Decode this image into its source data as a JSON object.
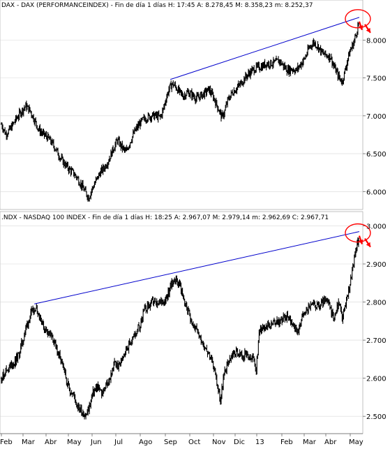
{
  "chart_data": [
    {
      "type": "ohlc",
      "title": "DAX - DAX (PERFORMANCEINDEX) - Fin de día 1 días H: 17:45  A: 8.278,45  M: 8.358,23  m: 8.252,37",
      "yticks": [
        "6.000",
        "6.500",
        "7.000",
        "7.500",
        "8.000"
      ],
      "ylim": [
        5800,
        8400
      ],
      "grid": true,
      "trendline": {
        "from": [
          "2012-09-03",
          7480
        ],
        "to": [
          "2013-05-08",
          8300
        ]
      },
      "annotation": "circle + arrows at latest high",
      "series": [
        {
          "close": [
            [
              0,
              6890
            ],
            [
              6,
              6760
            ],
            [
              12,
              6820
            ],
            [
              20,
              6950
            ],
            [
              28,
              7060
            ],
            [
              34,
              7130
            ],
            [
              40,
              7070
            ],
            [
              46,
              6950
            ],
            [
              52,
              6820
            ],
            [
              58,
              6760
            ],
            [
              64,
              6720
            ],
            [
              70,
              6650
            ],
            [
              76,
              6560
            ],
            [
              82,
              6450
            ],
            [
              88,
              6370
            ],
            [
              94,
              6300
            ],
            [
              100,
              6250
            ],
            [
              106,
              6180
            ],
            [
              112,
              6080
            ],
            [
              118,
              5980
            ],
            [
              122,
              5920
            ],
            [
              126,
              6020
            ],
            [
              132,
              6140
            ],
            [
              138,
              6250
            ],
            [
              144,
              6320
            ],
            [
              150,
              6420
            ],
            [
              156,
              6560
            ],
            [
              162,
              6680
            ],
            [
              168,
              6590
            ],
            [
              174,
              6520
            ],
            [
              180,
              6660
            ],
            [
              186,
              6790
            ],
            [
              192,
              6880
            ],
            [
              198,
              6950
            ],
            [
              204,
              6980
            ],
            [
              210,
              7000
            ],
            [
              216,
              7000
            ],
            [
              222,
              6980
            ],
            [
              226,
              7080
            ],
            [
              230,
              7230
            ],
            [
              234,
              7350
            ],
            [
              238,
              7420
            ],
            [
              242,
              7400
            ],
            [
              248,
              7320
            ],
            [
              254,
              7260
            ],
            [
              260,
              7310
            ],
            [
              266,
              7280
            ],
            [
              272,
              7230
            ],
            [
              278,
              7260
            ],
            [
              284,
              7300
            ],
            [
              290,
              7350
            ],
            [
              296,
              7250
            ],
            [
              302,
              7120
            ],
            [
              308,
              6980
            ],
            [
              312,
              7060
            ],
            [
              316,
              7200
            ],
            [
              322,
              7300
            ],
            [
              328,
              7360
            ],
            [
              334,
              7420
            ],
            [
              340,
              7500
            ],
            [
              346,
              7560
            ],
            [
              352,
              7610
            ],
            [
              358,
              7640
            ],
            [
              364,
              7650
            ],
            [
              370,
              7690
            ],
            [
              376,
              7690
            ],
            [
              382,
              7700
            ],
            [
              388,
              7730
            ],
            [
              394,
              7660
            ],
            [
              400,
              7600
            ],
            [
              406,
              7620
            ],
            [
              412,
              7600
            ],
            [
              418,
              7680
            ],
            [
              424,
              7760
            ],
            [
              430,
              7900
            ],
            [
              436,
              7970
            ],
            [
              442,
              7920
            ],
            [
              448,
              7830
            ],
            [
              454,
              7800
            ],
            [
              460,
              7780
            ],
            [
              464,
              7660
            ],
            [
              468,
              7580
            ],
            [
              472,
              7500
            ],
            [
              476,
              7450
            ],
            [
              480,
              7590
            ],
            [
              484,
              7760
            ],
            [
              488,
              7880
            ],
            [
              492,
              7960
            ],
            [
              496,
              8100
            ],
            [
              500,
              8260
            ]
          ]
        }
      ]
    },
    {
      "type": "ohlc",
      "title": ".NDX - NASDAQ 100 INDEX - Fin de día 1 días H: 18:25  A: 2.967,07  M: 2.979,14  m: 2.962,69  C: 2.967,71",
      "yticks": [
        "2.500",
        "2.600",
        "2.700",
        "2.800",
        "2.900",
        "3.000"
      ],
      "ylim": [
        2460,
        3010
      ],
      "grid": true,
      "trendline": {
        "from": [
          "2012-04-02",
          2795
        ],
        "to": [
          "2013-05-08",
          2985
        ]
      },
      "annotation": "circle + arrows at latest high",
      "series": [
        {
          "close": [
            [
              0,
              2600
            ],
            [
              6,
              2620
            ],
            [
              12,
              2630
            ],
            [
              18,
              2640
            ],
            [
              24,
              2660
            ],
            [
              30,
              2700
            ],
            [
              36,
              2740
            ],
            [
              42,
              2770
            ],
            [
              48,
              2790
            ],
            [
              54,
              2760
            ],
            [
              60,
              2730
            ],
            [
              66,
              2720
            ],
            [
              72,
              2700
            ],
            [
              78,
              2670
            ],
            [
              84,
              2640
            ],
            [
              90,
              2600
            ],
            [
              96,
              2570
            ],
            [
              102,
              2550
            ],
            [
              108,
              2520
            ],
            [
              114,
              2510
            ],
            [
              118,
              2500
            ],
            [
              122,
              2520
            ],
            [
              128,
              2560
            ],
            [
              134,
              2580
            ],
            [
              140,
              2560
            ],
            [
              146,
              2580
            ],
            [
              152,
              2600
            ],
            [
              158,
              2640
            ],
            [
              164,
              2630
            ],
            [
              170,
              2660
            ],
            [
              176,
              2680
            ],
            [
              182,
              2700
            ],
            [
              188,
              2720
            ],
            [
              194,
              2740
            ],
            [
              200,
              2780
            ],
            [
              206,
              2790
            ],
            [
              212,
              2800
            ],
            [
              218,
              2790
            ],
            [
              224,
              2800
            ],
            [
              230,
              2810
            ],
            [
              236,
              2840
            ],
            [
              242,
              2860
            ],
            [
              248,
              2850
            ],
            [
              252,
              2830
            ],
            [
              256,
              2800
            ],
            [
              262,
              2770
            ],
            [
              268,
              2740
            ],
            [
              274,
              2720
            ],
            [
              280,
              2700
            ],
            [
              286,
              2680
            ],
            [
              292,
              2650
            ],
            [
              298,
              2620
            ],
            [
              302,
              2580
            ],
            [
              306,
              2540
            ],
            [
              310,
              2600
            ],
            [
              316,
              2640
            ],
            [
              322,
              2660
            ],
            [
              328,
              2670
            ],
            [
              334,
              2660
            ],
            [
              340,
              2660
            ],
            [
              346,
              2650
            ],
            [
              352,
              2650
            ],
            [
              356,
              2620
            ],
            [
              360,
              2720
            ],
            [
              366,
              2740
            ],
            [
              372,
              2740
            ],
            [
              378,
              2740
            ],
            [
              384,
              2750
            ],
            [
              390,
              2750
            ],
            [
              396,
              2760
            ],
            [
              402,
              2760
            ],
            [
              408,
              2740
            ],
            [
              414,
              2720
            ],
            [
              420,
              2760
            ],
            [
              426,
              2780
            ],
            [
              432,
              2790
            ],
            [
              438,
              2790
            ],
            [
              444,
              2790
            ],
            [
              450,
              2800
            ],
            [
              456,
              2800
            ],
            [
              460,
              2780
            ],
            [
              464,
              2760
            ],
            [
              468,
              2780
            ],
            [
              472,
              2800
            ],
            [
              476,
              2760
            ],
            [
              480,
              2780
            ],
            [
              484,
              2820
            ],
            [
              488,
              2860
            ],
            [
              492,
              2900
            ],
            [
              496,
              2950
            ],
            [
              500,
              2968
            ]
          ]
        }
      ]
    }
  ],
  "xticks": [
    "Feb",
    "Mar",
    "Abr",
    "May",
    "Jun",
    "Jul",
    "Ago",
    "Sep",
    "Oct",
    "Nov",
    "Dic",
    "13",
    "Feb",
    "Mar",
    "Abr",
    "May"
  ],
  "colors": {
    "bars": "#000000",
    "trendline": "#0000cc",
    "annotation": "#ff0000",
    "grid": "#d8d8d8"
  }
}
